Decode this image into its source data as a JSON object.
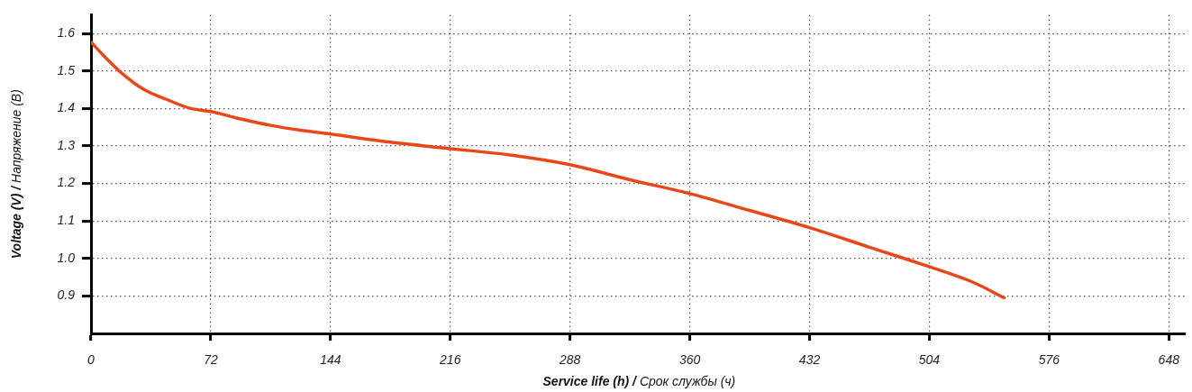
{
  "chart_data": {
    "type": "line",
    "xlabel": "Service life (h) / Срок службы (ч)",
    "ylabel": "Voltage (V) / Напряжение (В)",
    "xlim": [
      0,
      658
    ],
    "xticks": [
      0,
      72,
      144,
      216,
      288,
      360,
      432,
      504,
      576,
      648
    ],
    "ylim": [
      0.8,
      1.65
    ],
    "yticks": [
      {
        "value": 0.9,
        "label": "0.9"
      },
      {
        "value": 1.0,
        "label": "1.0"
      },
      1.1,
      1.2,
      1.3,
      1.4,
      1.5,
      1.6
    ],
    "grid": true,
    "legend": false,
    "marker": "none",
    "line_style": "solid",
    "series": [
      {
        "color": "#e8471a",
        "x": [
          0,
          10,
          17,
          32,
          45,
          60,
          72,
          90,
          108,
          126,
          144,
          180,
          216,
          252,
          288,
          324,
          360,
          396,
          432,
          468,
          504,
          530,
          549
        ],
        "values": [
          1.577,
          1.53,
          1.5,
          1.45,
          1.425,
          1.4,
          1.392,
          1.372,
          1.355,
          1.342,
          1.332,
          1.31,
          1.293,
          1.276,
          1.25,
          1.21,
          1.173,
          1.128,
          1.082,
          1.03,
          0.978,
          0.937,
          0.895
        ]
      }
    ]
  }
}
